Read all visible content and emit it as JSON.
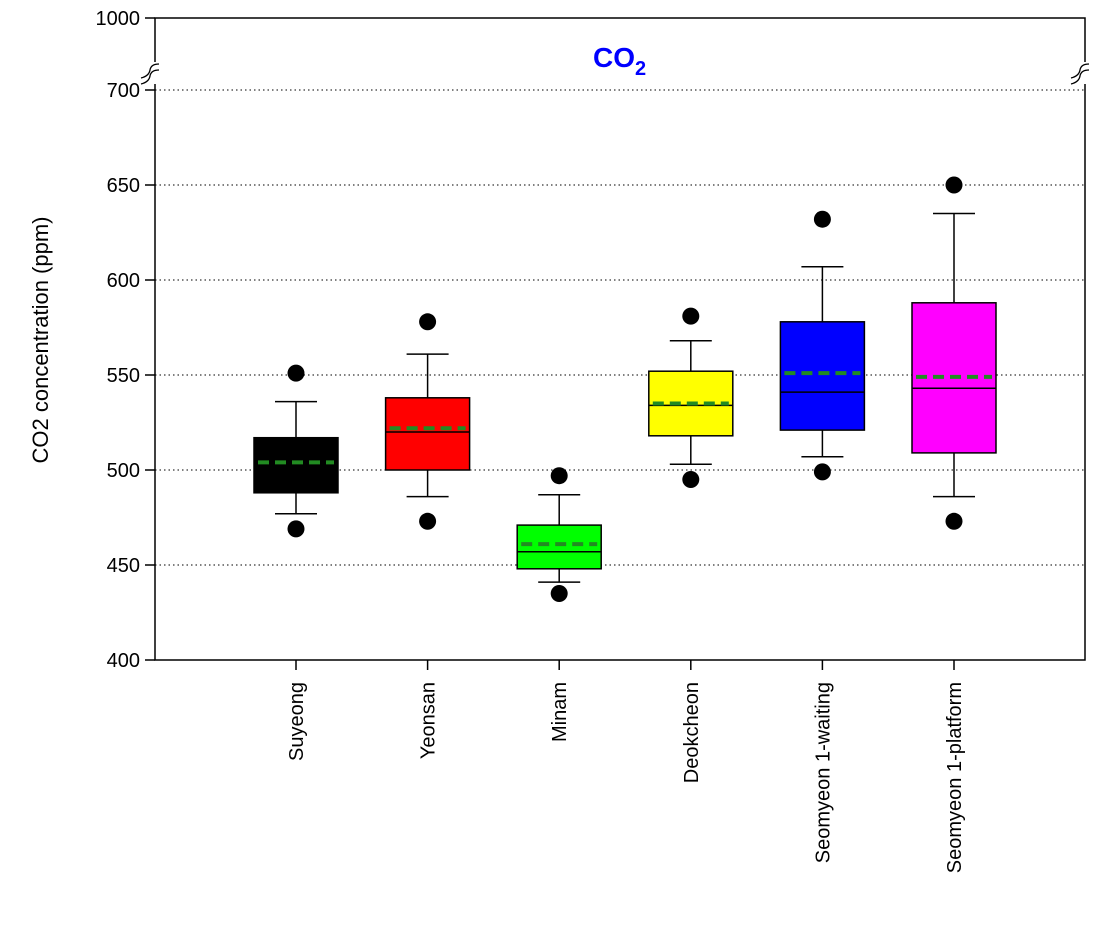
{
  "chart_data": {
    "type": "box",
    "title": "CO",
    "title_subscript": "2",
    "ylabel": "CO2 concentration (ppm)",
    "xlabel": "",
    "ylim": [
      400,
      1000
    ],
    "axis_break": [
      700,
      1000
    ],
    "y_ticks": [
      "400",
      "450",
      "500",
      "550",
      "600",
      "650",
      "700",
      "1000"
    ],
    "grid": "horizontal dotted",
    "categories": [
      "Suyeong",
      "Yeonsan",
      "Minam",
      "Deokcheon",
      "Seomyeon 1-waiting",
      "Seomyeon 1-platform"
    ],
    "series": [
      {
        "color": "#000000",
        "whisker_low": 477,
        "q1": 488,
        "median": 504,
        "mean": 504,
        "q3": 517,
        "whisker_high": 536,
        "outliers": [
          469,
          551
        ]
      },
      {
        "color": "#ff0000",
        "whisker_low": 486,
        "q1": 500,
        "median": 520,
        "mean": 522,
        "q3": 538,
        "whisker_high": 561,
        "outliers": [
          473,
          578
        ]
      },
      {
        "color": "#00ff00",
        "whisker_low": 441,
        "q1": 448,
        "median": 457,
        "mean": 461,
        "q3": 471,
        "whisker_high": 487,
        "outliers": [
          435,
          497
        ]
      },
      {
        "color": "#ffff00",
        "whisker_low": 503,
        "q1": 518,
        "median": 534,
        "mean": 535,
        "q3": 552,
        "whisker_high": 568,
        "outliers": [
          495,
          581
        ]
      },
      {
        "color": "#0000ff",
        "whisker_low": 507,
        "q1": 521,
        "median": 541,
        "mean": 551,
        "q3": 578,
        "whisker_high": 607,
        "outliers": [
          499,
          632
        ]
      },
      {
        "color": "#ff00ff",
        "whisker_low": 486,
        "q1": 509,
        "median": 543,
        "mean": 549,
        "q3": 588,
        "whisker_high": 635,
        "outliers": [
          473,
          650
        ]
      }
    ],
    "mean_line_color": "#228b22",
    "title_color": "#0000ff"
  }
}
